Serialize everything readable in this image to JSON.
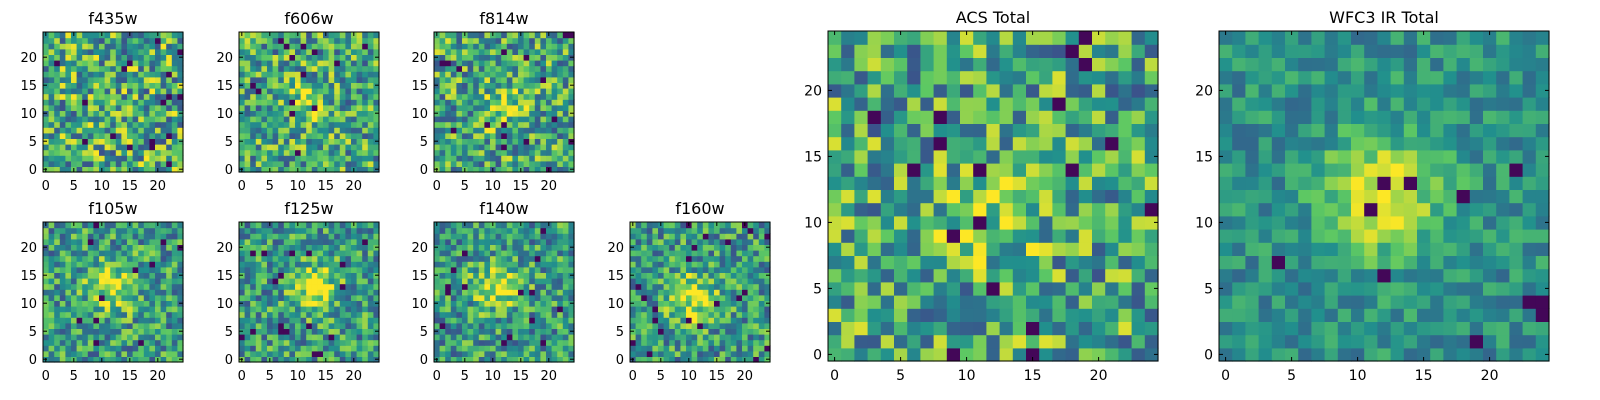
{
  "colormap": [
    "#440154",
    "#3b528b",
    "#21908d",
    "#5dc863",
    "#fde725"
  ],
  "chart_data": [
    {
      "type": "heatmap",
      "title": "f435w",
      "grid_size": 25,
      "xticks": [
        0,
        5,
        10,
        15,
        20
      ],
      "yticks": [
        0,
        5,
        10,
        15,
        20
      ],
      "xlim": [
        -0.5,
        24.5
      ],
      "ylim": [
        -0.5,
        24.5
      ],
      "structure": "noise",
      "center": [
        12,
        12
      ]
    },
    {
      "type": "heatmap",
      "title": "f606w",
      "grid_size": 25,
      "xticks": [
        0,
        5,
        10,
        15,
        20
      ],
      "yticks": [
        0,
        5,
        10,
        15,
        20
      ],
      "xlim": [
        -0.5,
        24.5
      ],
      "ylim": [
        -0.5,
        24.5
      ],
      "structure": "faint-source",
      "center": [
        11,
        12
      ]
    },
    {
      "type": "heatmap",
      "title": "f814w",
      "grid_size": 25,
      "xticks": [
        0,
        5,
        10,
        15,
        20
      ],
      "yticks": [
        0,
        5,
        10,
        15,
        20
      ],
      "xlim": [
        -0.5,
        24.5
      ],
      "ylim": [
        -0.5,
        24.5
      ],
      "structure": "faint-source",
      "center": [
        12,
        11
      ]
    },
    {
      "type": "heatmap",
      "title": "f105w",
      "grid_size": 25,
      "xticks": [
        0,
        5,
        10,
        15,
        20
      ],
      "yticks": [
        0,
        5,
        10,
        15,
        20
      ],
      "xlim": [
        -0.5,
        24.5
      ],
      "ylim": [
        -0.5,
        24.5
      ],
      "structure": "source",
      "center": [
        12,
        13
      ]
    },
    {
      "type": "heatmap",
      "title": "f125w",
      "grid_size": 25,
      "xticks": [
        0,
        5,
        10,
        15,
        20
      ],
      "yticks": [
        0,
        5,
        10,
        15,
        20
      ],
      "xlim": [
        -0.5,
        24.5
      ],
      "ylim": [
        -0.5,
        24.5
      ],
      "structure": "source",
      "center": [
        13,
        13
      ]
    },
    {
      "type": "heatmap",
      "title": "f140w",
      "grid_size": 25,
      "xticks": [
        0,
        5,
        10,
        15,
        20
      ],
      "yticks": [
        0,
        5,
        10,
        15,
        20
      ],
      "xlim": [
        -0.5,
        24.5
      ],
      "ylim": [
        -0.5,
        24.5
      ],
      "structure": "source",
      "center": [
        11,
        13
      ]
    },
    {
      "type": "heatmap",
      "title": "f160w",
      "grid_size": 25,
      "xticks": [
        0,
        5,
        10,
        15,
        20
      ],
      "yticks": [
        0,
        5,
        10,
        15,
        20
      ],
      "xlim": [
        -0.5,
        24.5
      ],
      "ylim": [
        -0.5,
        24.5
      ],
      "structure": "source",
      "center": [
        11,
        11
      ]
    },
    {
      "type": "heatmap",
      "title": "ACS Total",
      "grid_size": 25,
      "xticks": [
        0,
        5,
        10,
        15,
        20
      ],
      "yticks": [
        0,
        5,
        10,
        15,
        20
      ],
      "xlim": [
        -0.5,
        24.5
      ],
      "ylim": [
        -0.5,
        24.5
      ],
      "structure": "faint-source",
      "center": [
        12,
        11
      ]
    },
    {
      "type": "heatmap",
      "title": "WFC3 IR Total",
      "grid_size": 25,
      "xticks": [
        0,
        5,
        10,
        15,
        20
      ],
      "yticks": [
        0,
        5,
        10,
        15,
        20
      ],
      "xlim": [
        -0.5,
        24.5
      ],
      "ylim": [
        -0.5,
        24.5
      ],
      "structure": "smooth-source",
      "center": [
        12,
        12
      ]
    }
  ]
}
